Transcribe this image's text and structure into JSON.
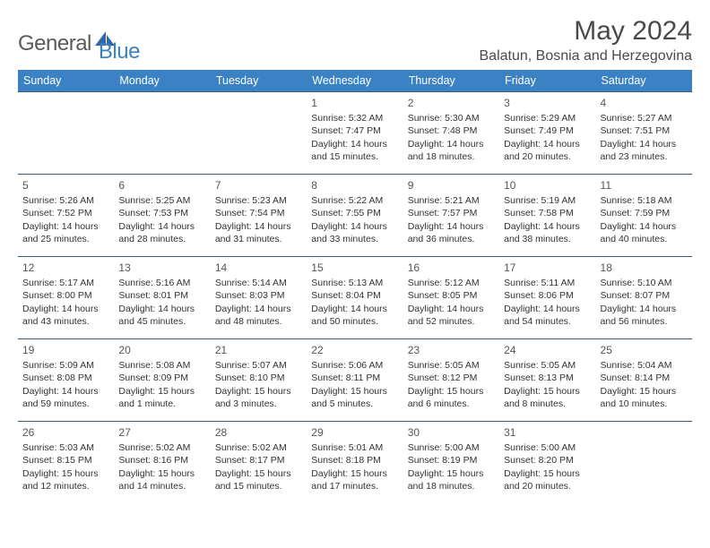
{
  "brand": {
    "text1": "General",
    "text2": "Blue"
  },
  "title": "May 2024",
  "location": "Balatun, Bosnia and Herzegovina",
  "header_bg": "#3b82c4",
  "header_fg": "#ffffff",
  "row_border": "#3b5a7a",
  "days": [
    "Sunday",
    "Monday",
    "Tuesday",
    "Wednesday",
    "Thursday",
    "Friday",
    "Saturday"
  ],
  "weeks": [
    [
      null,
      null,
      null,
      {
        "n": "1",
        "sr": "5:32 AM",
        "ss": "7:47 PM",
        "dl": "14 hours and 15 minutes."
      },
      {
        "n": "2",
        "sr": "5:30 AM",
        "ss": "7:48 PM",
        "dl": "14 hours and 18 minutes."
      },
      {
        "n": "3",
        "sr": "5:29 AM",
        "ss": "7:49 PM",
        "dl": "14 hours and 20 minutes."
      },
      {
        "n": "4",
        "sr": "5:27 AM",
        "ss": "7:51 PM",
        "dl": "14 hours and 23 minutes."
      }
    ],
    [
      {
        "n": "5",
        "sr": "5:26 AM",
        "ss": "7:52 PM",
        "dl": "14 hours and 25 minutes."
      },
      {
        "n": "6",
        "sr": "5:25 AM",
        "ss": "7:53 PM",
        "dl": "14 hours and 28 minutes."
      },
      {
        "n": "7",
        "sr": "5:23 AM",
        "ss": "7:54 PM",
        "dl": "14 hours and 31 minutes."
      },
      {
        "n": "8",
        "sr": "5:22 AM",
        "ss": "7:55 PM",
        "dl": "14 hours and 33 minutes."
      },
      {
        "n": "9",
        "sr": "5:21 AM",
        "ss": "7:57 PM",
        "dl": "14 hours and 36 minutes."
      },
      {
        "n": "10",
        "sr": "5:19 AM",
        "ss": "7:58 PM",
        "dl": "14 hours and 38 minutes."
      },
      {
        "n": "11",
        "sr": "5:18 AM",
        "ss": "7:59 PM",
        "dl": "14 hours and 40 minutes."
      }
    ],
    [
      {
        "n": "12",
        "sr": "5:17 AM",
        "ss": "8:00 PM",
        "dl": "14 hours and 43 minutes."
      },
      {
        "n": "13",
        "sr": "5:16 AM",
        "ss": "8:01 PM",
        "dl": "14 hours and 45 minutes."
      },
      {
        "n": "14",
        "sr": "5:14 AM",
        "ss": "8:03 PM",
        "dl": "14 hours and 48 minutes."
      },
      {
        "n": "15",
        "sr": "5:13 AM",
        "ss": "8:04 PM",
        "dl": "14 hours and 50 minutes."
      },
      {
        "n": "16",
        "sr": "5:12 AM",
        "ss": "8:05 PM",
        "dl": "14 hours and 52 minutes."
      },
      {
        "n": "17",
        "sr": "5:11 AM",
        "ss": "8:06 PM",
        "dl": "14 hours and 54 minutes."
      },
      {
        "n": "18",
        "sr": "5:10 AM",
        "ss": "8:07 PM",
        "dl": "14 hours and 56 minutes."
      }
    ],
    [
      {
        "n": "19",
        "sr": "5:09 AM",
        "ss": "8:08 PM",
        "dl": "14 hours and 59 minutes."
      },
      {
        "n": "20",
        "sr": "5:08 AM",
        "ss": "8:09 PM",
        "dl": "15 hours and 1 minute."
      },
      {
        "n": "21",
        "sr": "5:07 AM",
        "ss": "8:10 PM",
        "dl": "15 hours and 3 minutes."
      },
      {
        "n": "22",
        "sr": "5:06 AM",
        "ss": "8:11 PM",
        "dl": "15 hours and 5 minutes."
      },
      {
        "n": "23",
        "sr": "5:05 AM",
        "ss": "8:12 PM",
        "dl": "15 hours and 6 minutes."
      },
      {
        "n": "24",
        "sr": "5:05 AM",
        "ss": "8:13 PM",
        "dl": "15 hours and 8 minutes."
      },
      {
        "n": "25",
        "sr": "5:04 AM",
        "ss": "8:14 PM",
        "dl": "15 hours and 10 minutes."
      }
    ],
    [
      {
        "n": "26",
        "sr": "5:03 AM",
        "ss": "8:15 PM",
        "dl": "15 hours and 12 minutes."
      },
      {
        "n": "27",
        "sr": "5:02 AM",
        "ss": "8:16 PM",
        "dl": "15 hours and 14 minutes."
      },
      {
        "n": "28",
        "sr": "5:02 AM",
        "ss": "8:17 PM",
        "dl": "15 hours and 15 minutes."
      },
      {
        "n": "29",
        "sr": "5:01 AM",
        "ss": "8:18 PM",
        "dl": "15 hours and 17 minutes."
      },
      {
        "n": "30",
        "sr": "5:00 AM",
        "ss": "8:19 PM",
        "dl": "15 hours and 18 minutes."
      },
      {
        "n": "31",
        "sr": "5:00 AM",
        "ss": "8:20 PM",
        "dl": "15 hours and 20 minutes."
      },
      null
    ]
  ],
  "labels": {
    "sunrise": "Sunrise:",
    "sunset": "Sunset:",
    "daylight": "Daylight:"
  }
}
